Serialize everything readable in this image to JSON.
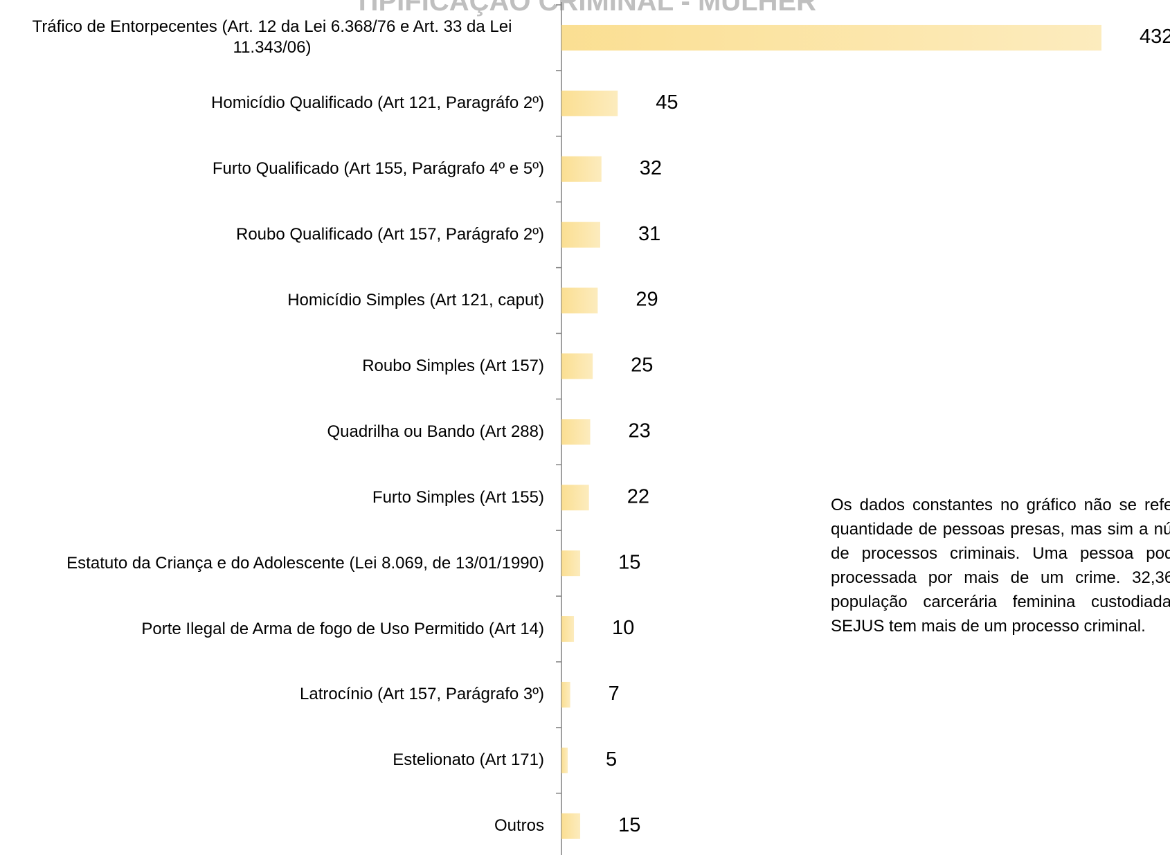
{
  "chart_data": {
    "type": "bar",
    "orientation": "horizontal",
    "title": "TIPIFICAÇÃO CRIMINAL - MULHER",
    "categories": [
      "Tráfico de Entorpecentes (Art. 12 da Lei 6.368/76 e Art. 33 da Lei 11.343/06)",
      "Homicídio Qualificado (Art 121, Paragráfo 2º)",
      "Furto Qualificado (Art 155, Parágrafo 4º e 5º)",
      "Roubo Qualificado (Art 157, Parágrafo 2º)",
      "Homicídio Simples (Art 121, caput)",
      "Roubo Simples (Art 157)",
      "Quadrilha ou Bando (Art 288)",
      "Furto Simples (Art 155)",
      "Estatuto da Criança e do Adolescente (Lei 8.069, de 13/01/1990)",
      "Porte Ilegal de Arma de fogo de Uso Permitido (Art 14)",
      "Latrocínio (Art 157, Parágrafo 3º)",
      "Estelionato (Art 171)",
      "Outros"
    ],
    "values": [
      432,
      45,
      32,
      31,
      29,
      25,
      23,
      22,
      15,
      10,
      7,
      5,
      15
    ],
    "color": "#f9d46e",
    "annotation": "Os dados constantes no gráfico não se referem a quantidade de pessoas presas, mas sim a números de processos criminais. Uma pessoa pode ser processada por mais de um crime. 32,36% da população carcerária feminina custodiada pela SEJUS tem mais de um processo criminal."
  }
}
